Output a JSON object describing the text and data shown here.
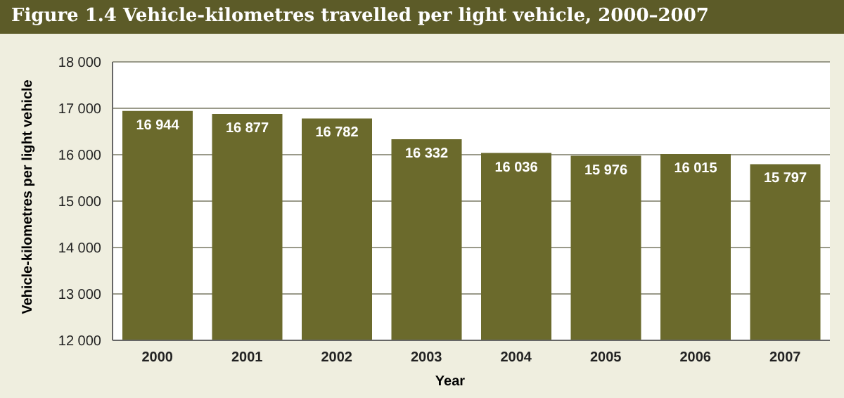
{
  "chart_data": {
    "type": "bar",
    "title": "Figure 1.4  Vehicle-kilometres travelled per light vehicle, 2000–2007",
    "xlabel": "Year",
    "ylabel": "Vehicle-kilometres per light vehicle",
    "categories": [
      "2000",
      "2001",
      "2002",
      "2003",
      "2004",
      "2005",
      "2006",
      "2007"
    ],
    "values": [
      16944,
      16877,
      16782,
      16332,
      16036,
      15976,
      16015,
      15797
    ],
    "value_labels": [
      "16 944",
      "16 877",
      "16 782",
      "16 332",
      "16 036",
      "15 976",
      "16 015",
      "15 797"
    ],
    "color": "#6b6a2c",
    "ylim": [
      12000,
      18000
    ],
    "yticks": [
      {
        "value": 12000,
        "label": "12 000"
      },
      {
        "value": 13000,
        "label": "13 000"
      },
      {
        "value": 14000,
        "label": "14 000"
      },
      {
        "value": 15000,
        "label": "15 000"
      },
      {
        "value": 16000,
        "label": "16 000"
      },
      {
        "value": 17000,
        "label": "17 000"
      },
      {
        "value": 18000,
        "label": "18 000"
      }
    ],
    "grid": "y",
    "legend": false
  }
}
